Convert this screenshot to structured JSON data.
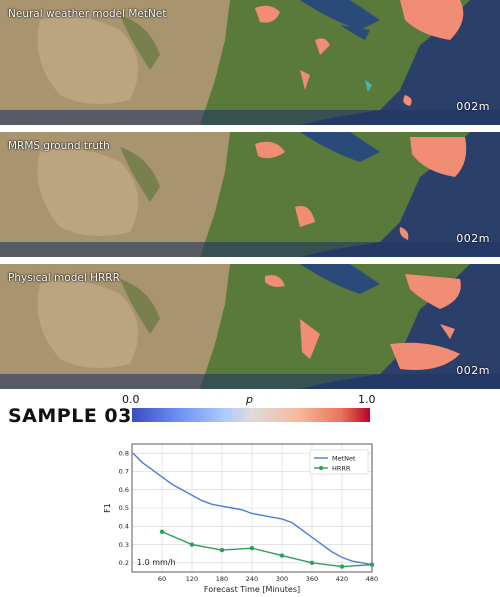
{
  "panels": [
    {
      "title": "Neural weather model MetNet",
      "time": "002m"
    },
    {
      "title": "MRMS ground truth",
      "time": "002m"
    },
    {
      "title": "Physical model HRRR",
      "time": "002m"
    }
  ],
  "sample_label": "SAMPLE 03",
  "colorbar": {
    "min_label": "0.0",
    "mid_label": "p",
    "max_label": "1.0"
  },
  "colors": {
    "metnet": "#4a7fd6",
    "hrrr": "#2ca05a",
    "precip": "#f08a70",
    "ocean": "#1d3a66",
    "land": "#4f6f35",
    "desert": "#b09a7a"
  },
  "chart_data": {
    "type": "line",
    "xlabel": "Forecast Time [Minutes]",
    "ylabel": "F1",
    "annotation": "1.0 mm/h",
    "xlim": [
      0,
      480
    ],
    "ylim": [
      0.15,
      0.85
    ],
    "x_ticks": [
      "60",
      "120",
      "180",
      "240",
      "300",
      "360",
      "420",
      "480"
    ],
    "y_ticks": [
      "0.2",
      "0.3",
      "0.4",
      "0.5",
      "0.6",
      "0.7",
      "0.8"
    ],
    "grid": true,
    "legend_position": "top-right",
    "series": [
      {
        "name": "MetNet",
        "x": [
          2,
          20,
          40,
          60,
          80,
          100,
          120,
          140,
          160,
          180,
          200,
          220,
          240,
          260,
          280,
          300,
          320,
          340,
          360,
          380,
          400,
          420,
          440,
          460,
          480
        ],
        "y": [
          0.8,
          0.75,
          0.71,
          0.67,
          0.63,
          0.6,
          0.57,
          0.54,
          0.52,
          0.51,
          0.5,
          0.49,
          0.47,
          0.46,
          0.45,
          0.44,
          0.42,
          0.38,
          0.34,
          0.3,
          0.26,
          0.23,
          0.21,
          0.2,
          0.19
        ]
      },
      {
        "name": "HRRR",
        "x": [
          60,
          120,
          180,
          240,
          300,
          360,
          420,
          480
        ],
        "y": [
          0.37,
          0.3,
          0.27,
          0.28,
          0.24,
          0.2,
          0.18,
          0.19
        ]
      }
    ]
  }
}
